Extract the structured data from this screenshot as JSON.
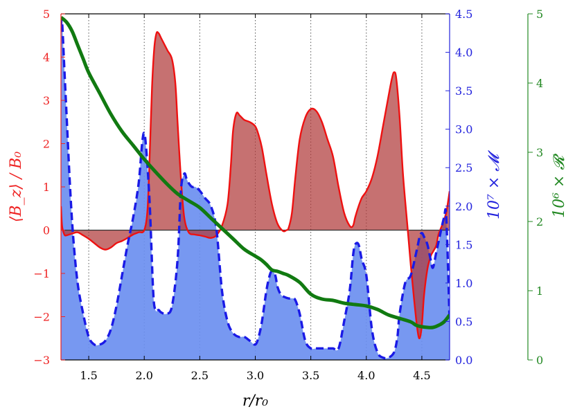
{
  "chart_data": {
    "type": "area",
    "xlabel": "r/r₀",
    "xlim": [
      1.25,
      4.75
    ],
    "xticks": [
      1.5,
      2.0,
      2.5,
      3.0,
      3.5,
      4.0,
      4.5
    ],
    "xtick_labels": [
      "1.5",
      "2.0",
      "2.5",
      "3.0",
      "3.5",
      "4.0",
      "4.5"
    ],
    "vertical_gridlines_at": [
      1.5,
      2.0,
      2.5,
      3.0,
      3.5,
      4.0,
      4.5
    ],
    "axes": {
      "left": {
        "label": "⟨B_z⟩ / B₀",
        "color": "#ee2222",
        "ylim": [
          -3,
          5
        ],
        "ticks": [
          -3,
          -2,
          -1,
          0,
          1,
          2,
          3,
          4,
          5
        ],
        "tick_labels": [
          "−3",
          "−2",
          "−1",
          "0",
          "1",
          "2",
          "3",
          "4",
          "5"
        ]
      },
      "right1": {
        "label": "10⁷ × 𝓜",
        "color": "#2222dd",
        "ylim": [
          0,
          4.5
        ],
        "ticks": [
          0,
          0.5,
          1.0,
          1.5,
          2.0,
          2.5,
          3.0,
          3.5,
          4.0,
          4.5
        ],
        "tick_labels": [
          "0.0",
          "0.5",
          "1.0",
          "1.5",
          "2.0",
          "2.5",
          "3.0",
          "3.5",
          "4.0",
          "4.5"
        ]
      },
      "right2": {
        "label": "10⁶ × 𝓡",
        "color": "#228822",
        "ylim": [
          0,
          5
        ],
        "ticks": [
          0,
          1,
          2,
          3,
          4,
          5
        ],
        "tick_labels": [
          "0",
          "1",
          "2",
          "3",
          "4",
          "5"
        ]
      }
    },
    "series": [
      {
        "axis": "left",
        "color": "#ee1111",
        "fill": "#b03a3a",
        "style": "solid-filled-to-zero",
        "x": [
          1.25,
          1.26,
          1.28,
          1.3,
          1.35,
          1.4,
          1.45,
          1.5,
          1.55,
          1.6,
          1.65,
          1.7,
          1.75,
          1.8,
          1.85,
          1.9,
          1.95,
          2.0,
          2.03,
          2.05,
          2.07,
          2.09,
          2.11,
          2.13,
          2.15,
          2.18,
          2.21,
          2.25,
          2.28,
          2.3,
          2.33,
          2.36,
          2.4,
          2.45,
          2.5,
          2.55,
          2.6,
          2.65,
          2.7,
          2.75,
          2.78,
          2.8,
          2.83,
          2.86,
          2.9,
          2.95,
          3.0,
          3.03,
          3.06,
          3.1,
          3.15,
          3.2,
          3.25,
          3.28,
          3.3,
          3.33,
          3.36,
          3.4,
          3.45,
          3.5,
          3.55,
          3.6,
          3.65,
          3.7,
          3.75,
          3.8,
          3.85,
          3.88,
          3.9,
          3.93,
          3.96,
          4.0,
          4.05,
          4.1,
          4.15,
          4.2,
          4.23,
          4.25,
          4.27,
          4.3,
          4.33,
          4.37,
          4.4,
          4.43,
          4.46,
          4.48,
          4.5,
          4.52,
          4.55,
          4.58,
          4.6,
          4.63,
          4.65,
          4.68,
          4.7,
          4.72,
          4.75
        ],
        "values": [
          0.55,
          0.1,
          -0.1,
          -0.12,
          -0.08,
          -0.05,
          -0.12,
          -0.2,
          -0.3,
          -0.4,
          -0.45,
          -0.4,
          -0.3,
          -0.25,
          -0.18,
          -0.1,
          -0.05,
          0.0,
          0.5,
          1.8,
          3.3,
          4.2,
          4.55,
          4.55,
          4.45,
          4.3,
          4.15,
          3.95,
          3.4,
          2.5,
          1.2,
          0.3,
          -0.05,
          -0.1,
          -0.12,
          -0.15,
          -0.18,
          -0.12,
          0.1,
          0.6,
          1.5,
          2.3,
          2.7,
          2.65,
          2.55,
          2.5,
          2.4,
          2.2,
          1.9,
          1.3,
          0.6,
          0.15,
          -0.02,
          0.0,
          0.05,
          0.4,
          1.2,
          2.1,
          2.6,
          2.8,
          2.75,
          2.5,
          2.1,
          1.7,
          1.0,
          0.4,
          0.1,
          0.1,
          0.3,
          0.55,
          0.75,
          0.9,
          1.2,
          1.7,
          2.4,
          3.1,
          3.5,
          3.65,
          3.5,
          2.6,
          1.3,
          0.1,
          -0.8,
          -1.6,
          -2.3,
          -2.5,
          -2.2,
          -1.5,
          -0.9,
          -0.6,
          -0.5,
          -0.35,
          -0.1,
          0.1,
          0.25,
          0.4,
          0.9
        ]
      },
      {
        "axis": "right1",
        "color": "#1a1ae6",
        "fill": "#6b8ff0",
        "style": "dashed-filled-to-bottom",
        "x": [
          1.25,
          1.26,
          1.28,
          1.3,
          1.33,
          1.36,
          1.4,
          1.45,
          1.5,
          1.55,
          1.6,
          1.65,
          1.7,
          1.75,
          1.8,
          1.85,
          1.9,
          1.95,
          1.98,
          2.0,
          2.02,
          2.05,
          2.08,
          2.1,
          2.13,
          2.15,
          2.2,
          2.25,
          2.3,
          2.33,
          2.36,
          2.38,
          2.4,
          2.43,
          2.46,
          2.5,
          2.55,
          2.6,
          2.65,
          2.7,
          2.75,
          2.8,
          2.85,
          2.9,
          2.95,
          3.0,
          3.03,
          3.06,
          3.1,
          3.13,
          3.15,
          3.18,
          3.2,
          3.23,
          3.26,
          3.3,
          3.33,
          3.36,
          3.4,
          3.45,
          3.5,
          3.55,
          3.6,
          3.65,
          3.7,
          3.75,
          3.8,
          3.85,
          3.88,
          3.9,
          3.93,
          3.96,
          4.0,
          4.05,
          4.1,
          4.15,
          4.2,
          4.25,
          4.28,
          4.3,
          4.35,
          4.4,
          4.45,
          4.48,
          4.5,
          4.52,
          4.55,
          4.58,
          4.6,
          4.63,
          4.66,
          4.7,
          4.72,
          4.75
        ],
        "values": [
          4.35,
          4.4,
          3.8,
          3.2,
          2.3,
          1.6,
          1.0,
          0.6,
          0.3,
          0.2,
          0.2,
          0.25,
          0.4,
          0.7,
          1.1,
          1.5,
          1.85,
          2.3,
          2.8,
          2.95,
          2.7,
          2.0,
          0.9,
          0.65,
          0.65,
          0.62,
          0.6,
          0.7,
          1.3,
          2.2,
          2.42,
          2.36,
          2.3,
          2.25,
          2.25,
          2.2,
          2.1,
          2.0,
          1.7,
          0.9,
          0.5,
          0.35,
          0.3,
          0.3,
          0.25,
          0.2,
          0.3,
          0.5,
          0.9,
          1.1,
          1.15,
          1.1,
          0.95,
          0.85,
          0.82,
          0.8,
          0.8,
          0.78,
          0.6,
          0.25,
          0.15,
          0.15,
          0.15,
          0.15,
          0.15,
          0.15,
          0.5,
          0.9,
          1.35,
          1.5,
          1.5,
          1.3,
          1.1,
          0.4,
          0.1,
          0.03,
          0.03,
          0.1,
          0.3,
          0.6,
          1.0,
          1.1,
          1.4,
          1.6,
          1.65,
          1.6,
          1.5,
          1.3,
          1.2,
          1.4,
          1.6,
          1.85,
          1.85,
          0.5
        ]
      },
      {
        "axis": "right2",
        "color": "#117a11",
        "style": "solid-thick",
        "x": [
          1.25,
          1.3,
          1.35,
          1.4,
          1.45,
          1.5,
          1.6,
          1.7,
          1.8,
          1.9,
          2.0,
          2.1,
          2.2,
          2.3,
          2.4,
          2.5,
          2.6,
          2.7,
          2.8,
          2.9,
          3.0,
          3.05,
          3.1,
          3.15,
          3.2,
          3.25,
          3.3,
          3.4,
          3.5,
          3.6,
          3.7,
          3.8,
          3.9,
          4.0,
          4.1,
          4.2,
          4.3,
          4.4,
          4.45,
          4.5,
          4.55,
          4.6,
          4.65,
          4.7,
          4.75
        ],
        "values": [
          4.95,
          4.88,
          4.75,
          4.55,
          4.35,
          4.15,
          3.85,
          3.55,
          3.3,
          3.1,
          2.9,
          2.72,
          2.55,
          2.4,
          2.3,
          2.2,
          2.05,
          1.9,
          1.75,
          1.6,
          1.5,
          1.45,
          1.38,
          1.3,
          1.28,
          1.25,
          1.22,
          1.12,
          0.95,
          0.88,
          0.86,
          0.82,
          0.8,
          0.78,
          0.73,
          0.65,
          0.6,
          0.55,
          0.5,
          0.48,
          0.47,
          0.47,
          0.5,
          0.55,
          0.65
        ]
      }
    ]
  }
}
